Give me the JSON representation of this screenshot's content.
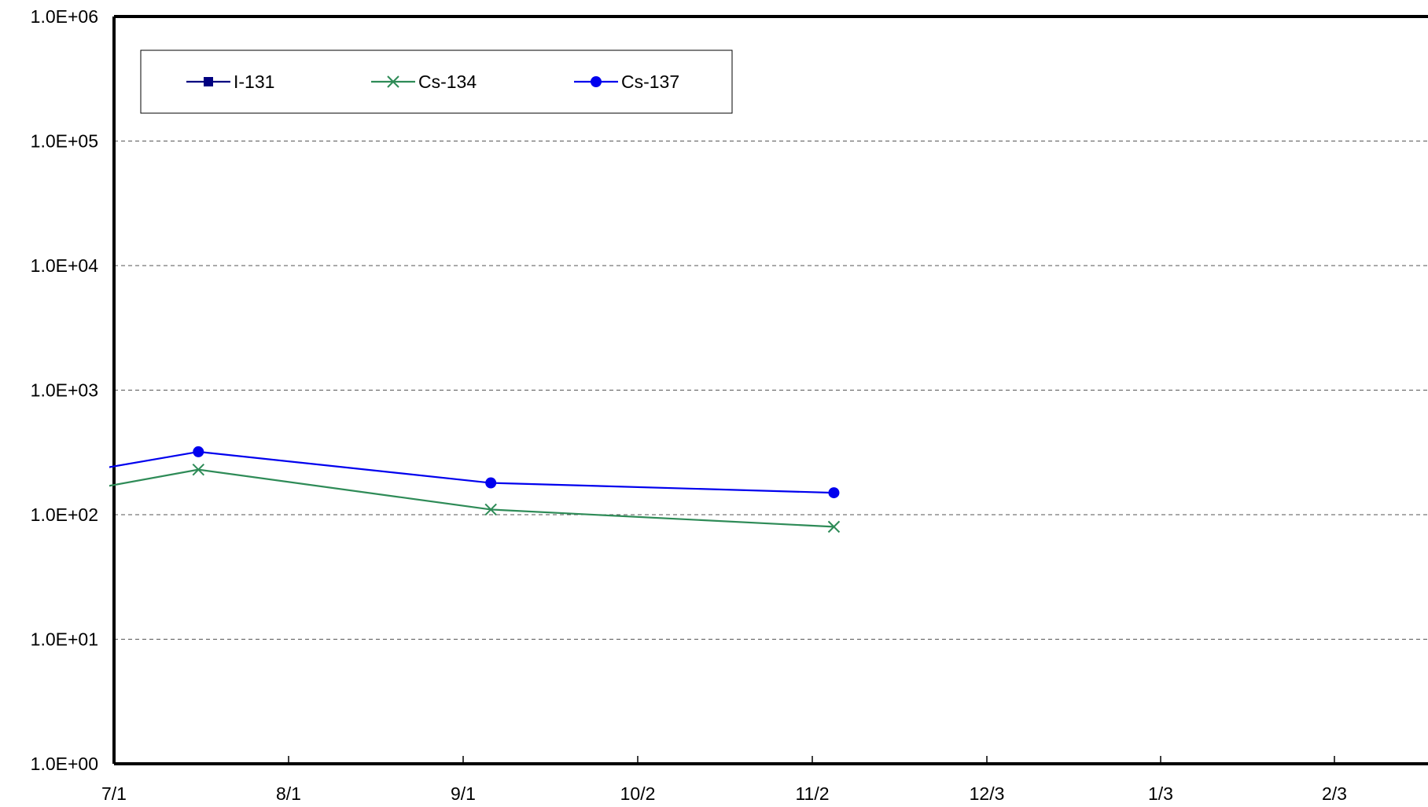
{
  "chart_data": {
    "type": "line",
    "title": "",
    "xlabel": "",
    "ylabel": "",
    "x_tick_labels": [
      "7/1",
      "8/1",
      "9/1",
      "10/2",
      "11/2",
      "12/3",
      "1/3",
      "2/3"
    ],
    "y_tick_labels": [
      "1.0E+00",
      "1.0E+01",
      "1.0E+02",
      "1.0E+03",
      "1.0E+04",
      "1.0E+05",
      "1.0E+06"
    ],
    "y_scale": "log",
    "ylim": [
      1,
      1000000
    ],
    "xlim_days": [
      0,
      247
    ],
    "grid": "horizontal dashed",
    "legend_position": "top-left",
    "x_day_labels_note_removed": true,
    "series": [
      {
        "name": "I-131",
        "color": "#000080",
        "marker": "square",
        "points": []
      },
      {
        "name": "Cs-134",
        "color": "#2E8B57",
        "marker": "x",
        "points": [
          {
            "x": "6/30",
            "y": 170
          },
          {
            "x": "7/16",
            "y": 230
          },
          {
            "x": "9/6",
            "y": 110
          },
          {
            "x": "11/6",
            "y": 80
          }
        ]
      },
      {
        "name": "Cs-137",
        "color": "#0000EE",
        "marker": "circle",
        "points": [
          {
            "x": "6/30",
            "y": 240
          },
          {
            "x": "7/16",
            "y": 320
          },
          {
            "x": "9/6",
            "y": 180
          },
          {
            "x": "11/6",
            "y": 150
          }
        ]
      }
    ]
  }
}
